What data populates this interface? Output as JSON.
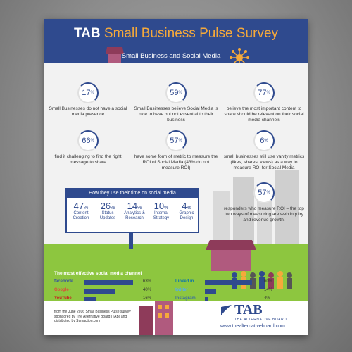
{
  "header": {
    "title_brand": "TAB",
    "title_rest": "Small Business Pulse Survey",
    "subtitle": "Small Business and Social Media"
  },
  "stats": [
    {
      "value": "17",
      "unit": "%",
      "text": "Small Businesses do not have a social media presence"
    },
    {
      "value": "59",
      "unit": "%",
      "text": "Small Businesses believe Social Media is nice to have but not essential to their business"
    },
    {
      "value": "77",
      "unit": "%",
      "text": "believe the most important content to share should be relevant on their social media channels"
    },
    {
      "value": "66",
      "unit": "%",
      "text": "find it challenging to find the right message to share"
    },
    {
      "value": "57",
      "unit": "%",
      "text": "have some form of metric to measure the ROI of Social Media (43% do not measure ROI)"
    },
    {
      "value": "6",
      "unit": "%",
      "text": "small businesses still use vanity metrics (likes, shares, views) as a way to measure ROI for Social Media"
    },
    {
      "value": "57",
      "unit": "%",
      "text": "responders who measure ROI – the top two ways of measuring are web inquiry and revenue growth."
    }
  ],
  "time": {
    "title": "How they use their time on social media",
    "items": [
      {
        "value": "47",
        "unit": "%",
        "label": "Content Creation"
      },
      {
        "value": "26",
        "unit": "%",
        "label": "Status Updates"
      },
      {
        "value": "14",
        "unit": "%",
        "label": "Analytics & Research"
      },
      {
        "value": "10",
        "unit": "%",
        "label": "Internal Strategy"
      },
      {
        "value": "4",
        "unit": "%",
        "label": "Graphic Design"
      }
    ]
  },
  "channels": {
    "title": "The most effective social media channel",
    "items": [
      {
        "name": "facebook",
        "value": "63%",
        "fraction": 0.63,
        "color": "#3b5998"
      },
      {
        "name": "Linked in",
        "value": "60%",
        "fraction": 0.6,
        "color": "#0e76a8"
      },
      {
        "name": "Google+",
        "value": "40%",
        "fraction": 0.4,
        "color": "#dd4b39"
      },
      {
        "name": "twitter",
        "value": "14%",
        "fraction": 0.14,
        "color": "#55acee"
      },
      {
        "name": "YouTube",
        "value": "16%",
        "fraction": 0.16,
        "color": "#cc181e"
      },
      {
        "name": "Instagram",
        "value": "4%",
        "fraction": 0.04,
        "color": "#3f729b"
      }
    ]
  },
  "footer": {
    "note": "from the June 2016 Small Business Pulse survey sponsored by The Alternative Board (TAB) and distributed by Symaction.com",
    "logo": "TAB",
    "logo_sub": "THE ALTERNATIVE BOARD",
    "url": "www.thealternativeboard.com"
  }
}
